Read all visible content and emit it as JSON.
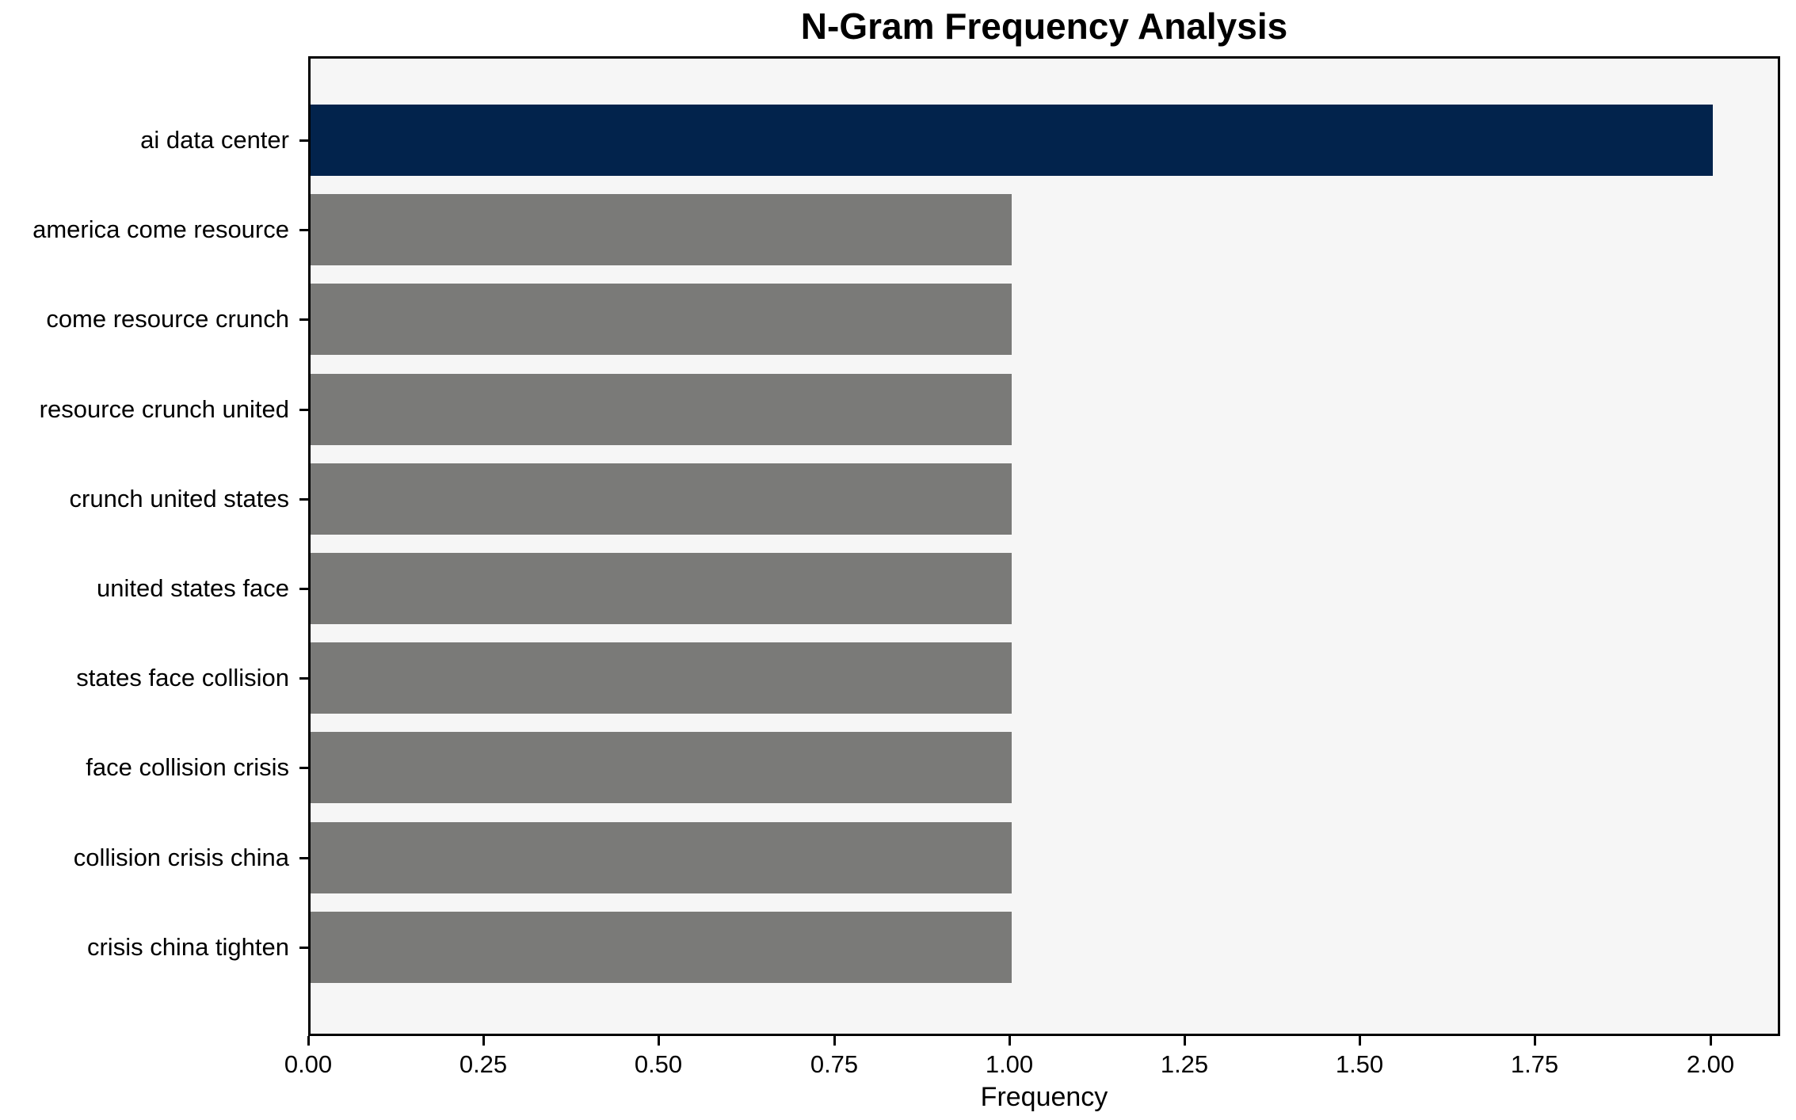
{
  "chart_data": {
    "type": "bar",
    "orientation": "horizontal",
    "title": "N-Gram Frequency Analysis",
    "xlabel": "Frequency",
    "ylabel": "",
    "categories": [
      "ai data center",
      "america come resource",
      "come resource crunch",
      "resource crunch united",
      "crunch united states",
      "united states face",
      "states face collision",
      "face collision crisis",
      "collision crisis china",
      "crisis china tighten"
    ],
    "values": [
      2,
      1,
      1,
      1,
      1,
      1,
      1,
      1,
      1,
      1
    ],
    "bar_colors": [
      "#02234c",
      "#7a7a78",
      "#7a7a78",
      "#7a7a78",
      "#7a7a78",
      "#7a7a78",
      "#7a7a78",
      "#7a7a78",
      "#7a7a78",
      "#7a7a78"
    ],
    "xticks": [
      "0.00",
      "0.25",
      "0.50",
      "0.75",
      "1.00",
      "1.25",
      "1.50",
      "1.75",
      "2.00"
    ],
    "xtick_values": [
      0,
      0.25,
      0.5,
      0.75,
      1.0,
      1.25,
      1.5,
      1.75,
      2.0
    ],
    "xlim": [
      0,
      2.1
    ],
    "grid": false,
    "legend": null,
    "colors": {
      "highlight_bar": "#02234c",
      "default_bar": "#7a7a78",
      "plot_background": "#f6f6f6",
      "frame": "#000000",
      "text": "#000000",
      "page_background": "#ffffff"
    }
  }
}
